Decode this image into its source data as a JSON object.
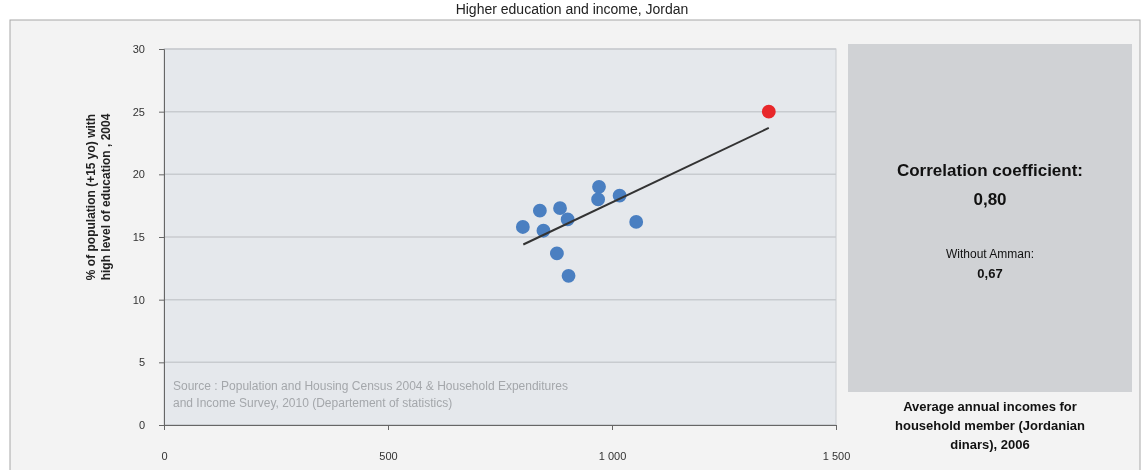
{
  "chart_data": {
    "type": "scatter",
    "title": "Higher education and income, Jordan",
    "xlabel": "Average annual incomes for household member (Jordanian dinars), 2006",
    "ylabel": "% of population (+15 yo) with high level of education , 2004",
    "series": [
      {
        "color": "#4a7fc1",
        "x": [
          801,
          839,
          847,
          884,
          901,
          877,
          903,
          971,
          969,
          1017,
          1054
        ],
        "values": [
          15.8,
          17.1,
          15.5,
          17.3,
          16.4,
          13.7,
          11.9,
          19.0,
          18.0,
          18.3,
          16.2
        ]
      },
      {
        "color": "#e8272a",
        "x": [
          1350
        ],
        "values": [
          25.0
        ]
      },
      {
        "type": "line",
        "marker": "none",
        "color": "#333333",
        "x": [
          802,
          1350
        ],
        "values": [
          14.4,
          23.7
        ]
      }
    ],
    "xlim": [
      0,
      1500
    ],
    "xticks": [
      0,
      500,
      {
        "value": 1000,
        "label": "1 000"
      },
      {
        "value": 1500,
        "label": "1 500"
      }
    ],
    "ylim": [
      0,
      30
    ],
    "yticks": [
      0,
      5,
      10,
      15,
      20,
      25,
      30
    ],
    "grid": "y",
    "marker": "circle",
    "line_style": "solid",
    "annotations": [
      "Correlation coefficient:",
      "0,80",
      "Without Amman:",
      "0,67",
      "Source : Population and Housing Census 2004 & Household Expenditures and Income Survey, 2010 (Departement of statistics)"
    ]
  }
}
